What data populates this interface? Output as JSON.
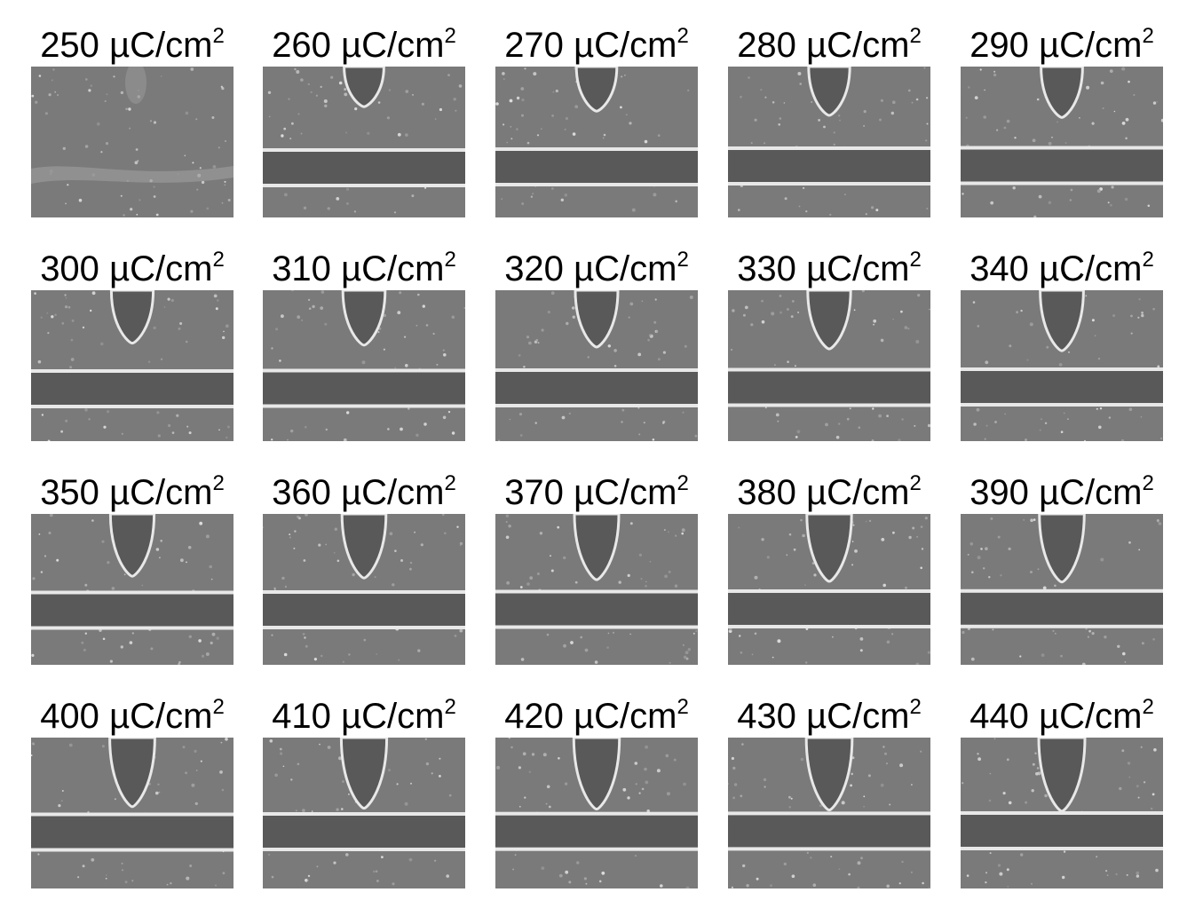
{
  "unit": "µC/cm",
  "exponent": "2",
  "colors": {
    "background": "#ffffff",
    "label_text": "#000000",
    "sem_substrate": "#7a7a7a",
    "sem_trench": "#595959",
    "sem_edge": "#e8e8e8"
  },
  "panels": [
    {
      "dose": "250",
      "tip_extension": 0.0,
      "trench": false
    },
    {
      "dose": "260",
      "tip_extension": 0.1,
      "trench": true
    },
    {
      "dose": "270",
      "tip_extension": 0.2,
      "trench": true
    },
    {
      "dose": "280",
      "tip_extension": 0.3,
      "trench": true
    },
    {
      "dose": "290",
      "tip_extension": 0.35,
      "trench": true
    },
    {
      "dose": "300",
      "tip_extension": 0.4,
      "trench": true
    },
    {
      "dose": "310",
      "tip_extension": 0.45,
      "trench": true
    },
    {
      "dose": "320",
      "tip_extension": 0.5,
      "trench": true
    },
    {
      "dose": "330",
      "tip_extension": 0.55,
      "trench": true
    },
    {
      "dose": "340",
      "tip_extension": 0.6,
      "trench": true
    },
    {
      "dose": "350",
      "tip_extension": 0.65,
      "trench": true
    },
    {
      "dose": "360",
      "tip_extension": 0.7,
      "trench": true
    },
    {
      "dose": "370",
      "tip_extension": 0.75,
      "trench": true
    },
    {
      "dose": "380",
      "tip_extension": 0.8,
      "trench": true
    },
    {
      "dose": "390",
      "tip_extension": 0.82,
      "trench": true
    },
    {
      "dose": "400",
      "tip_extension": 0.85,
      "trench": true
    },
    {
      "dose": "410",
      "tip_extension": 0.9,
      "trench": true
    },
    {
      "dose": "420",
      "tip_extension": 0.93,
      "trench": true
    },
    {
      "dose": "430",
      "tip_extension": 0.96,
      "trench": true
    },
    {
      "dose": "440",
      "tip_extension": 1.0,
      "trench": true
    }
  ]
}
